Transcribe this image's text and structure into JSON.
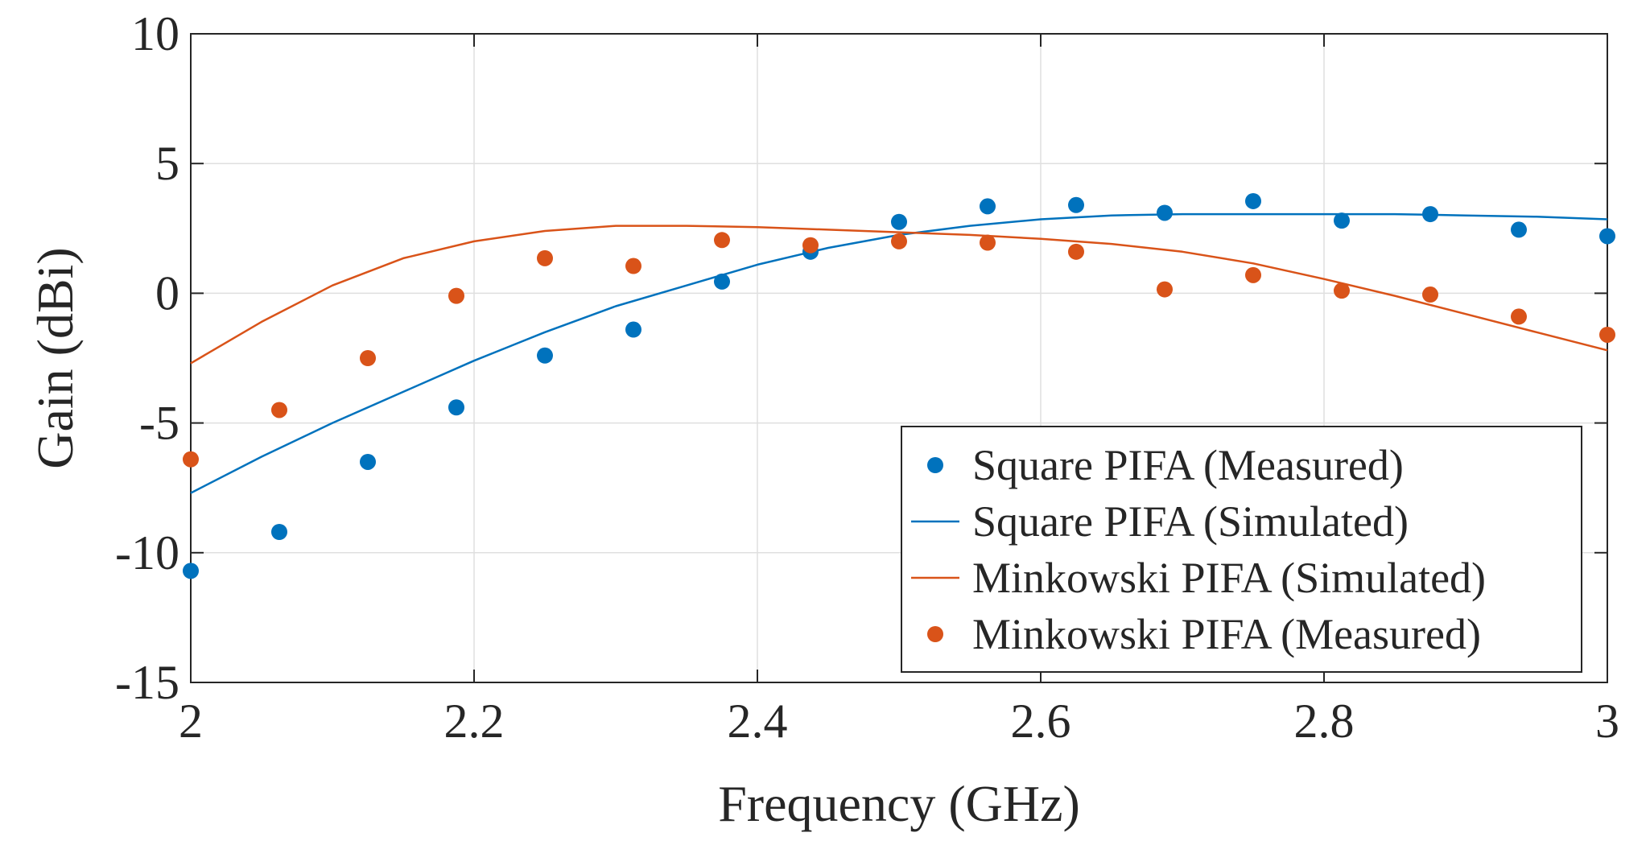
{
  "chart_data": {
    "type": "line",
    "title": "",
    "xlabel": "Frequency (GHz)",
    "ylabel": "Gain (dBi)",
    "xlim": [
      2,
      3
    ],
    "ylim": [
      -15,
      10
    ],
    "xticks": [
      2,
      2.2,
      2.4,
      2.6,
      2.8,
      3
    ],
    "xtick_labels": [
      "2",
      "2.2",
      "2.4",
      "2.6",
      "2.8",
      "3"
    ],
    "yticks": [
      -15,
      -10,
      -5,
      0,
      5,
      10
    ],
    "ytick_labels": [
      "-15",
      "-10",
      "-5",
      "0",
      "5",
      "10"
    ],
    "grid": true,
    "legend_position": "bottom-right",
    "series": [
      {
        "name": "Square PIFA (Measured)",
        "style": "markers",
        "color": "#0072BD",
        "x": [
          2.0,
          2.0625,
          2.125,
          2.1875,
          2.25,
          2.3125,
          2.375,
          2.4375,
          2.5,
          2.5625,
          2.625,
          2.6875,
          2.75,
          2.8125,
          2.875,
          2.9375,
          3.0
        ],
        "y": [
          -10.7,
          -9.2,
          -6.5,
          -4.4,
          -2.4,
          -1.4,
          0.45,
          1.6,
          2.75,
          3.35,
          3.4,
          3.1,
          3.55,
          2.8,
          3.05,
          2.45,
          2.2
        ]
      },
      {
        "name": "Square PIFA (Simulated)",
        "style": "line",
        "color": "#0072BD",
        "x": [
          2.0,
          2.05,
          2.1,
          2.15,
          2.2,
          2.25,
          2.3,
          2.35,
          2.4,
          2.45,
          2.5,
          2.55,
          2.6,
          2.65,
          2.7,
          2.75,
          2.8,
          2.85,
          2.9,
          2.95,
          3.0
        ],
        "y": [
          -7.7,
          -6.3,
          -5.0,
          -3.8,
          -2.6,
          -1.5,
          -0.5,
          0.3,
          1.1,
          1.75,
          2.25,
          2.6,
          2.85,
          3.0,
          3.05,
          3.05,
          3.05,
          3.05,
          3.0,
          2.95,
          2.85
        ]
      },
      {
        "name": "Minkowski PIFA (Simulated)",
        "style": "line",
        "color": "#D95319",
        "x": [
          2.0,
          2.05,
          2.1,
          2.15,
          2.2,
          2.25,
          2.3,
          2.35,
          2.4,
          2.45,
          2.5,
          2.55,
          2.6,
          2.65,
          2.7,
          2.75,
          2.8,
          2.85,
          2.9,
          2.95,
          3.0
        ],
        "y": [
          -2.7,
          -1.1,
          0.3,
          1.35,
          2.0,
          2.4,
          2.6,
          2.6,
          2.55,
          2.45,
          2.35,
          2.25,
          2.1,
          1.9,
          1.6,
          1.15,
          0.55,
          -0.1,
          -0.8,
          -1.5,
          -2.2
        ]
      },
      {
        "name": "Minkowski PIFA (Measured)",
        "style": "markers",
        "color": "#D95319",
        "x": [
          2.0,
          2.0625,
          2.125,
          2.1875,
          2.25,
          2.3125,
          2.375,
          2.4375,
          2.5,
          2.5625,
          2.625,
          2.6875,
          2.75,
          2.8125,
          2.875,
          2.9375,
          3.0
        ],
        "y": [
          -6.4,
          -4.5,
          -2.5,
          -0.1,
          1.35,
          1.05,
          2.05,
          1.85,
          2.0,
          1.95,
          1.6,
          0.15,
          0.7,
          0.1,
          -0.05,
          -0.9,
          -1.6
        ]
      }
    ]
  }
}
